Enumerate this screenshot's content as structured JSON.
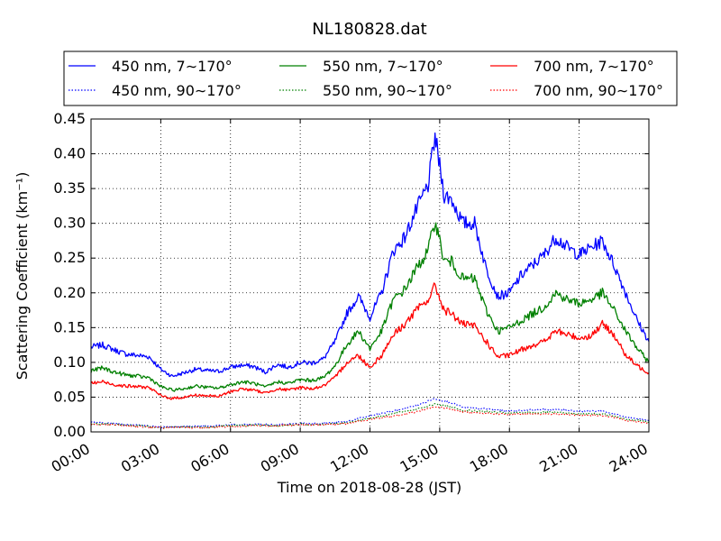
{
  "chart_data": {
    "type": "line",
    "title": "NL180828.dat",
    "xlabel": "Time on 2018-08-28 (JST)",
    "ylabel": "Scattering Coefficient (km⁻¹)",
    "xlim": [
      0,
      24
    ],
    "ylim": [
      0,
      0.45
    ],
    "xticks": [
      "00:00",
      "03:00",
      "06:00",
      "09:00",
      "12:00",
      "15:00",
      "18:00",
      "21:00",
      "24:00"
    ],
    "yticks": [
      "0.00",
      "0.05",
      "0.10",
      "0.15",
      "0.20",
      "0.25",
      "0.30",
      "0.35",
      "0.40",
      "0.45"
    ],
    "grid": true,
    "legend_position": "top",
    "series": [
      {
        "name": "450 nm, 7∼170°",
        "color": "#0000ff",
        "style": "solid",
        "x": [
          0,
          0.5,
          1,
          1.5,
          2,
          2.5,
          3,
          3.5,
          4,
          4.5,
          5,
          5.5,
          6,
          6.5,
          7,
          7.5,
          8,
          8.5,
          9,
          9.5,
          10,
          10.5,
          11,
          11.5,
          12,
          12.5,
          13,
          13.5,
          14,
          14.5,
          14.8,
          15.2,
          15.5,
          16,
          16.5,
          17,
          17.5,
          18,
          18.5,
          19,
          19.5,
          20,
          20.5,
          21,
          21.5,
          22,
          22.5,
          23,
          23.5,
          24
        ],
        "y": [
          0.122,
          0.125,
          0.118,
          0.112,
          0.11,
          0.108,
          0.09,
          0.08,
          0.085,
          0.09,
          0.088,
          0.087,
          0.093,
          0.096,
          0.094,
          0.086,
          0.097,
          0.093,
          0.1,
          0.099,
          0.105,
          0.13,
          0.17,
          0.195,
          0.165,
          0.2,
          0.26,
          0.28,
          0.32,
          0.355,
          0.425,
          0.34,
          0.335,
          0.3,
          0.3,
          0.235,
          0.195,
          0.2,
          0.225,
          0.24,
          0.255,
          0.28,
          0.265,
          0.255,
          0.265,
          0.275,
          0.24,
          0.2,
          0.16,
          0.13
        ]
      },
      {
        "name": "450 nm, 90∼170°",
        "color": "#0000ff",
        "style": "dotted",
        "x": [
          0,
          1,
          2,
          3,
          4,
          5,
          6,
          7,
          8,
          9,
          10,
          11,
          12,
          13,
          14,
          14.8,
          15.5,
          16,
          17,
          18,
          19,
          20,
          21,
          22,
          23,
          24
        ],
        "y": [
          0.014,
          0.012,
          0.01,
          0.007,
          0.008,
          0.008,
          0.01,
          0.011,
          0.01,
          0.012,
          0.012,
          0.015,
          0.023,
          0.03,
          0.038,
          0.048,
          0.042,
          0.035,
          0.033,
          0.03,
          0.032,
          0.032,
          0.03,
          0.03,
          0.022,
          0.016
        ]
      },
      {
        "name": "550 nm, 7∼170°",
        "color": "#008000",
        "style": "solid",
        "x": [
          0,
          0.5,
          1,
          1.5,
          2,
          2.5,
          3,
          3.5,
          4,
          4.5,
          5,
          5.5,
          6,
          6.5,
          7,
          7.5,
          8,
          8.5,
          9,
          9.5,
          10,
          10.5,
          11,
          11.5,
          12,
          12.5,
          13,
          13.5,
          14,
          14.5,
          14.8,
          15.2,
          15.5,
          16,
          16.5,
          17,
          17.5,
          18,
          18.5,
          19,
          19.5,
          20,
          20.5,
          21,
          21.5,
          22,
          22.5,
          23,
          23.5,
          24
        ],
        "y": [
          0.088,
          0.092,
          0.086,
          0.082,
          0.08,
          0.078,
          0.065,
          0.06,
          0.062,
          0.066,
          0.064,
          0.063,
          0.068,
          0.072,
          0.07,
          0.064,
          0.072,
          0.07,
          0.075,
          0.074,
          0.078,
          0.095,
          0.125,
          0.145,
          0.12,
          0.145,
          0.19,
          0.205,
          0.235,
          0.26,
          0.305,
          0.245,
          0.245,
          0.22,
          0.22,
          0.175,
          0.145,
          0.15,
          0.16,
          0.17,
          0.18,
          0.2,
          0.19,
          0.185,
          0.19,
          0.2,
          0.175,
          0.145,
          0.12,
          0.1
        ]
      },
      {
        "name": "550 nm, 90∼170°",
        "color": "#008000",
        "style": "dotted",
        "x": [
          0,
          1,
          2,
          3,
          4,
          5,
          6,
          7,
          8,
          9,
          10,
          11,
          12,
          13,
          14,
          14.8,
          15.5,
          16,
          17,
          18,
          19,
          20,
          21,
          22,
          23,
          24
        ],
        "y": [
          0.012,
          0.011,
          0.009,
          0.006,
          0.007,
          0.007,
          0.009,
          0.01,
          0.009,
          0.011,
          0.011,
          0.013,
          0.02,
          0.026,
          0.033,
          0.04,
          0.036,
          0.031,
          0.029,
          0.027,
          0.028,
          0.028,
          0.026,
          0.026,
          0.019,
          0.014
        ]
      },
      {
        "name": "700 nm, 7∼170°",
        "color": "#ff0000",
        "style": "solid",
        "x": [
          0,
          0.5,
          1,
          1.5,
          2,
          2.5,
          3,
          3.5,
          4,
          4.5,
          5,
          5.5,
          6,
          6.5,
          7,
          7.5,
          8,
          8.5,
          9,
          9.5,
          10,
          10.5,
          11,
          11.5,
          12,
          12.5,
          13,
          13.5,
          14,
          14.5,
          14.8,
          15.2,
          15.5,
          16,
          16.5,
          17,
          17.5,
          18,
          18.5,
          19,
          19.5,
          20,
          20.5,
          21,
          21.5,
          22,
          22.5,
          23,
          23.5,
          24
        ],
        "y": [
          0.07,
          0.072,
          0.068,
          0.066,
          0.065,
          0.064,
          0.052,
          0.048,
          0.05,
          0.053,
          0.052,
          0.051,
          0.058,
          0.062,
          0.06,
          0.056,
          0.062,
          0.06,
          0.064,
          0.062,
          0.066,
          0.078,
          0.1,
          0.11,
          0.093,
          0.11,
          0.14,
          0.155,
          0.175,
          0.19,
          0.21,
          0.175,
          0.17,
          0.155,
          0.152,
          0.13,
          0.108,
          0.11,
          0.118,
          0.125,
          0.13,
          0.145,
          0.14,
          0.135,
          0.138,
          0.155,
          0.14,
          0.11,
          0.095,
          0.085
        ]
      },
      {
        "name": "700 nm, 90∼170°",
        "color": "#ff0000",
        "style": "dotted",
        "x": [
          0,
          1,
          2,
          3,
          4,
          5,
          6,
          7,
          8,
          9,
          10,
          11,
          12,
          13,
          14,
          14.8,
          15.5,
          16,
          17,
          18,
          19,
          20,
          21,
          22,
          23,
          24
        ],
        "y": [
          0.011,
          0.01,
          0.008,
          0.006,
          0.006,
          0.006,
          0.008,
          0.009,
          0.009,
          0.01,
          0.01,
          0.012,
          0.018,
          0.023,
          0.029,
          0.036,
          0.033,
          0.029,
          0.027,
          0.025,
          0.026,
          0.026,
          0.024,
          0.024,
          0.017,
          0.013
        ]
      }
    ]
  }
}
